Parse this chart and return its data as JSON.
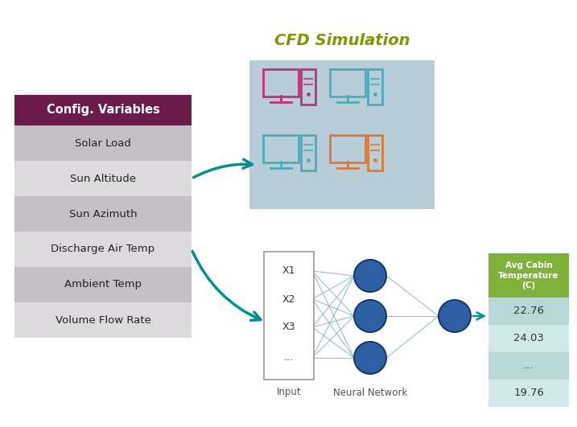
{
  "config_vars_header": "Config. Variables",
  "config_vars": [
    "Solar Load",
    "Sun Altitude",
    "Sun Azimuth",
    "Discharge Air Temp",
    "Ambient Temp",
    "Volume Flow Rate"
  ],
  "header_bg": "#6B1A4A",
  "row_bg_odd": "#C5C0C5",
  "row_bg_even": "#DDDADD",
  "header_text_color": "#FFFFFF",
  "row_text_color": "#222222",
  "cfd_title": "CFD Simulation",
  "cfd_title_color": "#7A9A00",
  "cfd_box_bg": "#B8CDD8",
  "nn_input_labels": [
    "X1",
    "X2",
    "X3",
    "..."
  ],
  "nn_input_label": "Input",
  "nn_label": "Neural Network",
  "output_header": "Avg Cabin\nTemperature\n(C)",
  "output_header_bg": "#7FB23A",
  "output_header_text": "#FFFFFF",
  "output_values": [
    "22.76",
    "24.03",
    "...",
    "19.76"
  ],
  "output_bg_light": "#B8D8D8",
  "output_bg_lighter": "#D0E8E8",
  "arrow_color": "#009090",
  "node_color": "#2E5FA3",
  "node_edge_color": "#1A3A6B",
  "connection_color": "#7BAFD4",
  "background_color": "#FFFFFF",
  "computer_colors_top": [
    "#C0317A",
    "#4AADBC",
    "#4AADBC"
  ],
  "computer_colors_bot": [
    "#4AADBC",
    "#E07830",
    "#E07830"
  ]
}
